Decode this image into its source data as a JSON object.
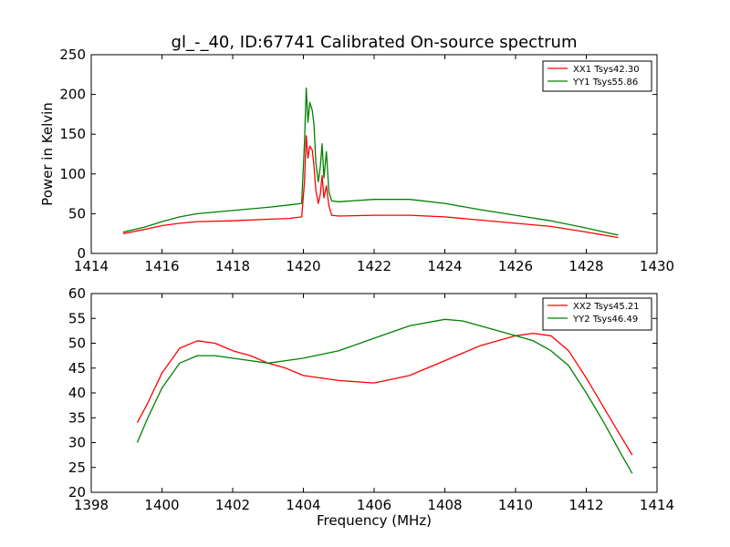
{
  "chart_data": [
    {
      "type": "line",
      "title": "gl_-_40, ID:67741 Calibrated On-source spectrum",
      "xlabel": "",
      "ylabel": "Power in Kelvin",
      "xlim": [
        1414,
        1430
      ],
      "ylim": [
        0,
        250
      ],
      "xticks": [
        1414,
        1416,
        1418,
        1420,
        1422,
        1424,
        1426,
        1428,
        1430
      ],
      "yticks": [
        0,
        50,
        100,
        150,
        200,
        250
      ],
      "legend_position": "top-right",
      "grid": false,
      "series": [
        {
          "name": "XX1 Tsys42.30",
          "color": "#ff0000",
          "x": [
            1414.9,
            1415.5,
            1416,
            1416.5,
            1417,
            1418,
            1419,
            1419.6,
            1419.95,
            1420.03,
            1420.08,
            1420.13,
            1420.18,
            1420.25,
            1420.3,
            1420.35,
            1420.42,
            1420.48,
            1420.53,
            1420.58,
            1420.65,
            1420.72,
            1420.8,
            1421,
            1422,
            1423,
            1424,
            1425,
            1426,
            1427,
            1428,
            1428.9
          ],
          "y": [
            25,
            30,
            35,
            38,
            40,
            41,
            43,
            44,
            46,
            90,
            148,
            120,
            135,
            130,
            110,
            80,
            63,
            75,
            98,
            70,
            85,
            60,
            48,
            47,
            48,
            48,
            46,
            42,
            38,
            34,
            27,
            20
          ]
        },
        {
          "name": "YY1 Tsys55.86",
          "color": "#008000",
          "x": [
            1414.9,
            1415.5,
            1416,
            1416.5,
            1417,
            1418,
            1419,
            1419.6,
            1419.95,
            1420.03,
            1420.08,
            1420.13,
            1420.18,
            1420.25,
            1420.3,
            1420.35,
            1420.42,
            1420.48,
            1420.53,
            1420.58,
            1420.65,
            1420.72,
            1420.8,
            1421,
            1422,
            1423,
            1424,
            1425,
            1426,
            1427,
            1428,
            1428.9
          ],
          "y": [
            27,
            33,
            40,
            46,
            50,
            54,
            58,
            61,
            63,
            140,
            208,
            165,
            190,
            180,
            162,
            115,
            90,
            110,
            138,
            95,
            128,
            78,
            66,
            65,
            68,
            68,
            63,
            55,
            48,
            41,
            32,
            23
          ]
        }
      ]
    },
    {
      "type": "line",
      "title": "",
      "xlabel": "Frequency (MHz)",
      "ylabel": "",
      "xlim": [
        1398,
        1414
      ],
      "ylim": [
        20,
        60
      ],
      "xticks": [
        1398,
        1400,
        1402,
        1404,
        1406,
        1408,
        1410,
        1412,
        1414
      ],
      "yticks": [
        20,
        25,
        30,
        35,
        40,
        45,
        50,
        55,
        60
      ],
      "legend_position": "top-right",
      "grid": false,
      "series": [
        {
          "name": "XX2 Tsys45.21",
          "color": "#ff0000",
          "x": [
            1399.3,
            1399.6,
            1400,
            1400.5,
            1401,
            1401.5,
            1402,
            1402.5,
            1403,
            1403.5,
            1404,
            1405,
            1406,
            1407,
            1408,
            1409,
            1410,
            1410.5,
            1411,
            1411.5,
            1412,
            1412.5,
            1413,
            1413.3
          ],
          "y": [
            34,
            38,
            44,
            49,
            50.5,
            50,
            48.5,
            47.5,
            46,
            45,
            43.5,
            42.5,
            42,
            43.5,
            46.5,
            49.5,
            51.5,
            52,
            51.5,
            48.5,
            43,
            37,
            31,
            27.5
          ]
        },
        {
          "name": "YY2 Tsys46.49",
          "color": "#008000",
          "x": [
            1399.3,
            1399.6,
            1400,
            1400.5,
            1401,
            1401.5,
            1402,
            1402.5,
            1403,
            1403.5,
            1404,
            1405,
            1406,
            1407,
            1408,
            1408.5,
            1409,
            1410,
            1410.5,
            1411,
            1411.5,
            1412,
            1412.5,
            1413,
            1413.3
          ],
          "y": [
            30,
            35,
            41,
            46,
            47.5,
            47.5,
            47,
            46.5,
            46,
            46.5,
            47,
            48.5,
            51,
            53.5,
            54.8,
            54.5,
            53.5,
            51.5,
            50.5,
            48.5,
            45.5,
            40,
            34,
            27.5,
            23.8
          ]
        }
      ]
    }
  ]
}
